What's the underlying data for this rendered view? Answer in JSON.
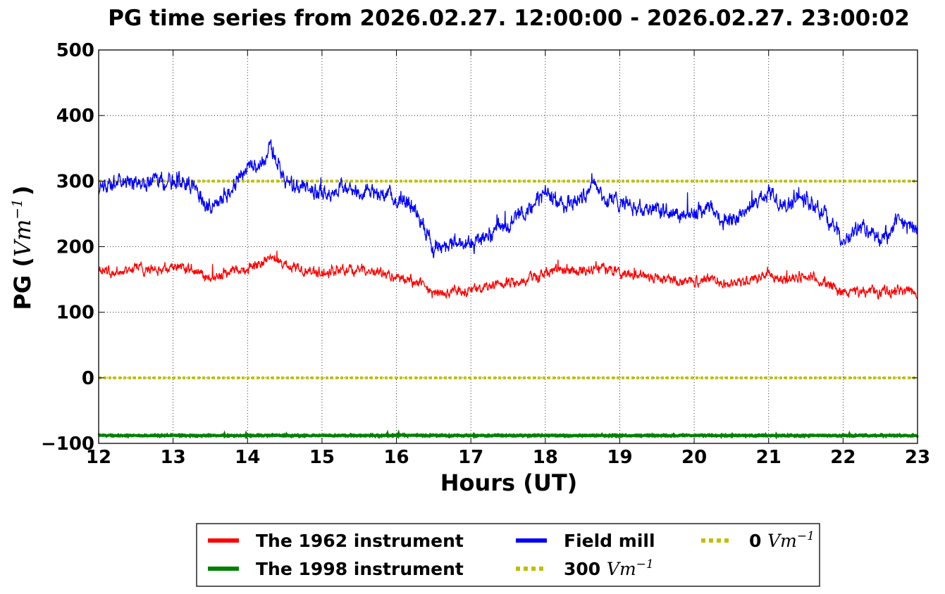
{
  "chart_data": {
    "type": "line",
    "title": "PG time series from 2026.02.27. 12:00:00 - 2026.02.27. 23:00:02",
    "xlabel": "Hours (UT)",
    "ylabel_prefix": "PG (",
    "ylabel_unit": "Vm",
    "ylabel_exp": "−1",
    "ylabel_suffix": ")",
    "xlim": [
      12,
      23
    ],
    "ylim": [
      -100,
      500
    ],
    "xticks": [
      12,
      13,
      14,
      15,
      16,
      17,
      18,
      19,
      20,
      21,
      22,
      23
    ],
    "yticks": [
      -100,
      0,
      100,
      200,
      300,
      400,
      500
    ],
    "ytick_labels": [
      "−100",
      "0",
      "100",
      "200",
      "300",
      "400",
      "500"
    ],
    "grid": true,
    "legend_placement": "bottom-center (below axes)",
    "series": [
      {
        "name": "The 1962 instrument",
        "color": "#ff0000",
        "style": "solid",
        "x": [
          12.0,
          12.25,
          12.5,
          12.75,
          13.0,
          13.25,
          13.5,
          13.75,
          14.0,
          14.25,
          14.3,
          14.5,
          14.75,
          15.0,
          15.25,
          15.5,
          15.75,
          16.0,
          16.25,
          16.5,
          16.75,
          17.0,
          17.25,
          17.5,
          17.75,
          18.0,
          18.25,
          18.5,
          18.7,
          19.0,
          19.25,
          19.5,
          19.75,
          20.0,
          20.25,
          20.5,
          20.75,
          21.0,
          21.25,
          21.5,
          21.75,
          22.0,
          22.25,
          22.5,
          22.75,
          23.0
        ],
        "y": [
          165,
          162,
          168,
          165,
          170,
          163,
          150,
          160,
          168,
          178,
          185,
          172,
          165,
          160,
          165,
          163,
          160,
          152,
          148,
          128,
          132,
          133,
          138,
          145,
          150,
          160,
          162,
          162,
          170,
          160,
          157,
          152,
          148,
          147,
          150,
          142,
          150,
          157,
          150,
          155,
          145,
          130,
          133,
          130,
          135,
          130
        ],
        "noise": 9
      },
      {
        "name": "The 1998 instrument",
        "color": "#008000",
        "style": "solid",
        "x": [
          12.0,
          23.0
        ],
        "y": [
          -88,
          -88
        ],
        "noise": 1
      },
      {
        "name": "Field mill",
        "color": "#0000ff",
        "style": "solid",
        "x": [
          12.0,
          12.25,
          12.5,
          12.75,
          13.0,
          13.25,
          13.5,
          13.75,
          14.0,
          14.25,
          14.3,
          14.5,
          14.75,
          15.0,
          15.25,
          15.5,
          15.75,
          16.0,
          16.25,
          16.5,
          16.75,
          17.0,
          17.25,
          17.5,
          17.75,
          18.0,
          18.25,
          18.5,
          18.65,
          18.8,
          19.0,
          19.25,
          19.5,
          19.75,
          20.0,
          20.25,
          20.4,
          20.6,
          20.75,
          21.0,
          21.25,
          21.4,
          21.6,
          21.75,
          22.0,
          22.25,
          22.5,
          22.75,
          23.0
        ],
        "y": [
          285,
          300,
          295,
          305,
          300,
          295,
          260,
          285,
          320,
          330,
          360,
          300,
          290,
          280,
          290,
          285,
          280,
          275,
          260,
          195,
          205,
          205,
          220,
          235,
          255,
          282,
          265,
          275,
          305,
          270,
          270,
          260,
          255,
          245,
          250,
          258,
          240,
          245,
          260,
          283,
          260,
          282,
          262,
          250,
          205,
          230,
          210,
          238,
          225
        ],
        "noise": 14
      },
      {
        "name": "300 Vm⁻¹",
        "color": "#bfbf00",
        "style": "dotted",
        "x": [
          12.0,
          23.0
        ],
        "y": [
          300,
          300
        ],
        "noise": 0
      },
      {
        "name": "0 Vm⁻¹",
        "color": "#bfbf00",
        "style": "dotted",
        "x": [
          12.0,
          23.0
        ],
        "y": [
          0,
          0
        ],
        "noise": 0
      }
    ],
    "legend": [
      {
        "prefix": "The 1962 instrument",
        "unit": "",
        "exp": "",
        "color": "#ff0000",
        "style": "solid"
      },
      {
        "prefix": "The 1998 instrument",
        "unit": "",
        "exp": "",
        "color": "#008000",
        "style": "solid"
      },
      {
        "prefix": "Field mill",
        "unit": "",
        "exp": "",
        "color": "#0000ff",
        "style": "solid"
      },
      {
        "prefix": "300 ",
        "unit": "Vm",
        "exp": "−1",
        "color": "#bfbf00",
        "style": "dotted"
      },
      {
        "prefix": "0 ",
        "unit": "Vm",
        "exp": "−1",
        "color": "#bfbf00",
        "style": "dotted"
      }
    ]
  }
}
